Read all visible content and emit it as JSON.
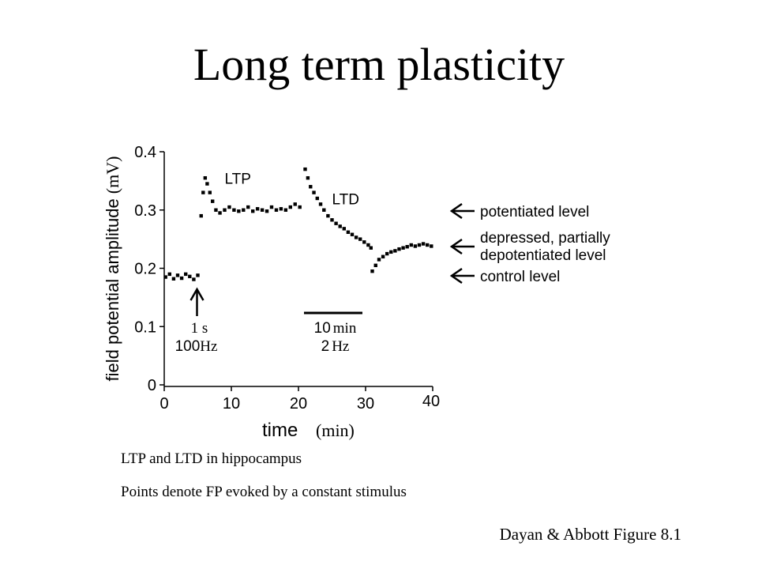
{
  "slide": {
    "title": "Long term plasticity",
    "caption1": "LTP and LTD in hippocampus",
    "caption2": "Points denote FP evoked by a constant stimulus",
    "credit": "Dayan & Abbott Figure 8.1"
  },
  "chart_data": {
    "type": "scatter",
    "ylabel": "field potential amplitude (mV)",
    "xlabel_main": "time",
    "xlabel_unit": "(min)",
    "xlim": [
      0,
      40
    ],
    "ylim": [
      0,
      0.4
    ],
    "x_ticks": [
      "0",
      "10",
      "20",
      "30",
      "40"
    ],
    "y_ticks": [
      "0",
      "0.1",
      "0.2",
      "0.3",
      "0.4"
    ],
    "series": [
      {
        "points": [
          [
            0.2,
            0.185
          ],
          [
            0.8,
            0.19
          ],
          [
            1.4,
            0.182
          ],
          [
            2.0,
            0.188
          ],
          [
            2.6,
            0.183
          ],
          [
            3.2,
            0.19
          ],
          [
            3.8,
            0.186
          ],
          [
            4.4,
            0.181
          ],
          [
            5.0,
            0.188
          ],
          [
            5.5,
            0.29
          ],
          [
            5.8,
            0.33
          ],
          [
            6.1,
            0.355
          ],
          [
            6.4,
            0.345
          ],
          [
            6.8,
            0.33
          ],
          [
            7.2,
            0.315
          ],
          [
            7.7,
            0.3
          ],
          [
            8.3,
            0.295
          ],
          [
            9.0,
            0.3
          ],
          [
            9.7,
            0.305
          ],
          [
            10.4,
            0.3
          ],
          [
            11.1,
            0.298
          ],
          [
            11.8,
            0.3
          ],
          [
            12.5,
            0.305
          ],
          [
            13.2,
            0.298
          ],
          [
            13.9,
            0.302
          ],
          [
            14.6,
            0.3
          ],
          [
            15.3,
            0.298
          ],
          [
            16.0,
            0.305
          ],
          [
            16.7,
            0.3
          ],
          [
            17.4,
            0.302
          ],
          [
            18.1,
            0.3
          ],
          [
            18.8,
            0.305
          ],
          [
            19.5,
            0.31
          ],
          [
            20.2,
            0.305
          ],
          [
            21.0,
            0.37
          ],
          [
            21.4,
            0.355
          ],
          [
            21.8,
            0.34
          ],
          [
            22.3,
            0.33
          ],
          [
            22.8,
            0.32
          ],
          [
            23.3,
            0.31
          ],
          [
            23.8,
            0.3
          ],
          [
            24.4,
            0.29
          ],
          [
            25.0,
            0.283
          ],
          [
            25.6,
            0.277
          ],
          [
            26.2,
            0.272
          ],
          [
            26.8,
            0.268
          ],
          [
            27.4,
            0.262
          ],
          [
            28.0,
            0.258
          ],
          [
            28.6,
            0.253
          ],
          [
            29.2,
            0.25
          ],
          [
            29.8,
            0.245
          ],
          [
            30.4,
            0.24
          ],
          [
            30.8,
            0.235
          ],
          [
            31.0,
            0.195
          ],
          [
            31.5,
            0.205
          ],
          [
            32.0,
            0.215
          ],
          [
            32.6,
            0.22
          ],
          [
            33.2,
            0.225
          ],
          [
            33.8,
            0.228
          ],
          [
            34.4,
            0.23
          ],
          [
            35.0,
            0.233
          ],
          [
            35.6,
            0.235
          ],
          [
            36.2,
            0.237
          ],
          [
            36.8,
            0.24
          ],
          [
            37.4,
            0.238
          ],
          [
            38.0,
            0.24
          ],
          [
            38.6,
            0.242
          ],
          [
            39.2,
            0.24
          ],
          [
            39.8,
            0.238
          ]
        ]
      }
    ],
    "phase_labels": [
      {
        "text": "LTP",
        "x": 9,
        "y": 0.345
      },
      {
        "text": "LTD",
        "x": 25,
        "y": 0.31
      }
    ],
    "stimuli": [
      {
        "line1": "1 s",
        "line2_num": "100",
        "line2_unit": "Hz",
        "at_min": 5
      },
      {
        "line1_num": "10",
        "line1_unit": "min",
        "line2_num": "2",
        "line2_unit": "Hz",
        "from_min": 20,
        "to_min": 30
      }
    ],
    "level_annotations": [
      {
        "lines": [
          "potentiated level"
        ],
        "y": 0.3
      },
      {
        "lines": [
          "depressed, partially",
          "depotentiated level"
        ],
        "y": 0.24
      },
      {
        "lines": [
          "control level"
        ],
        "y": 0.185
      }
    ]
  }
}
